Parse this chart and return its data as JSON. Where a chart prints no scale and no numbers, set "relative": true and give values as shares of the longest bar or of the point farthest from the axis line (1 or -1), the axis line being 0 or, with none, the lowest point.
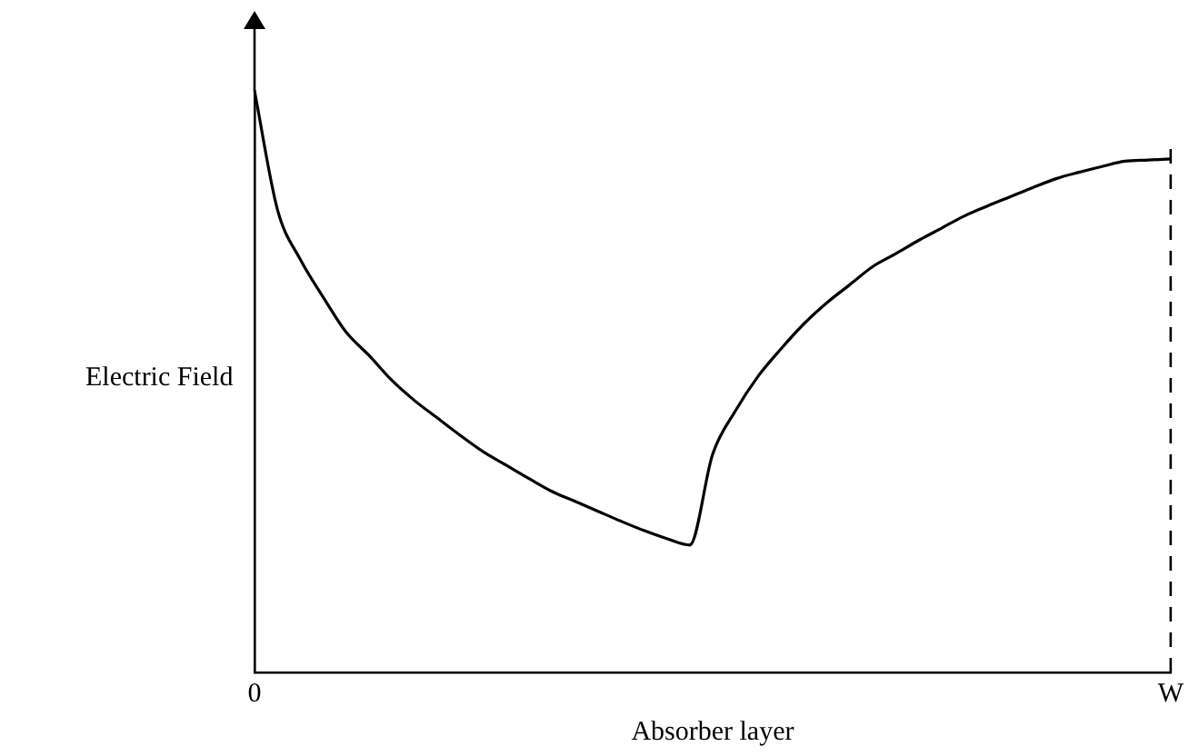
{
  "chart_data": {
    "type": "line",
    "relative": true,
    "ylabel": "Electric Field",
    "xlabel": "Absorber layer",
    "categories": [
      "0",
      null,
      null,
      null,
      null,
      null,
      null,
      null,
      null,
      null,
      null,
      null,
      null,
      null,
      null,
      null,
      null,
      null,
      null,
      null,
      null,
      null,
      null,
      null,
      null,
      null,
      null,
      null,
      null,
      null,
      null,
      null,
      null,
      null,
      null,
      null,
      null,
      null,
      null,
      null,
      "W"
    ],
    "series": [
      {
        "color": "#000000",
        "values": [
          1,
          0.796,
          0.71,
          0.645,
          0.585,
          0.545,
          0.502,
          0.467,
          0.437,
          0.407,
          0.379,
          0.356,
          0.333,
          0.311,
          0.294,
          0.277,
          0.26,
          0.244,
          0.23,
          0.219,
          0.375,
          0.45,
          0.51,
          0.557,
          0.6,
          0.636,
          0.667,
          0.698,
          0.72,
          0.743,
          0.764,
          0.785,
          0.802,
          0.818,
          0.834,
          0.849,
          0.86,
          0.87,
          0.879,
          0.881,
          0.883
        ]
      }
    ],
    "ref_lines": [
      {
        "axis": "x",
        "value": "W",
        "line_style": "dashed",
        "color": "#000000"
      }
    ],
    "marker": "none",
    "line_style": "solid",
    "grid": false,
    "legend": false
  }
}
